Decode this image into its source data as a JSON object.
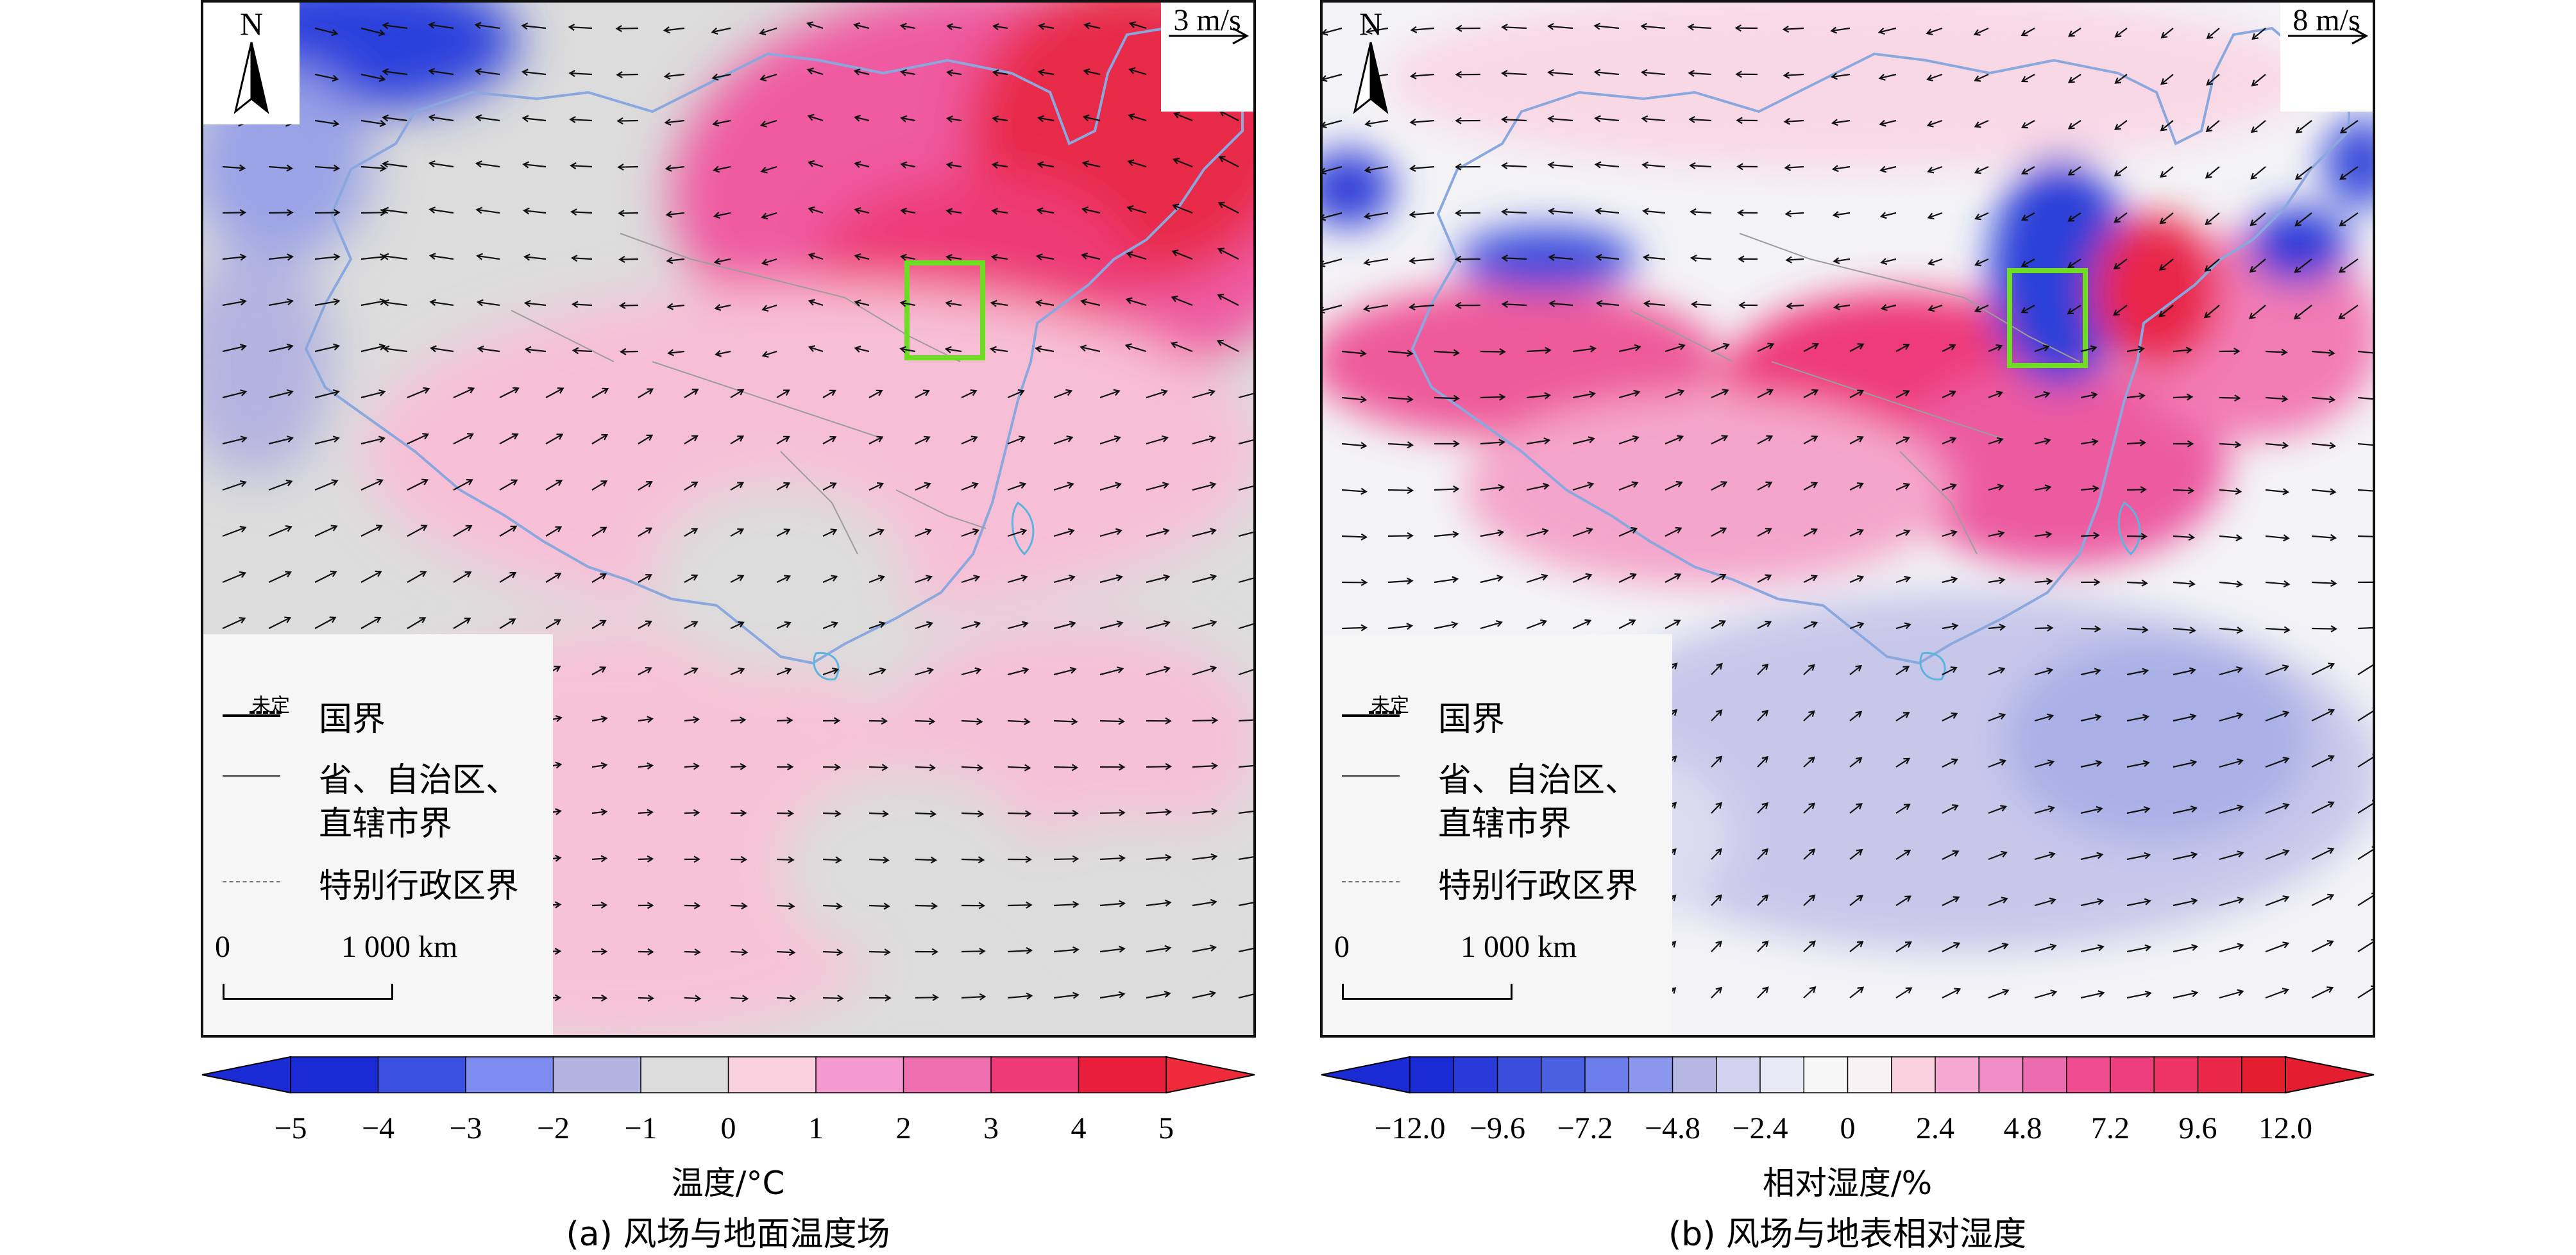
{
  "panels": [
    {
      "caption": "(a) 风场与地面温度场",
      "reference_vector": "3 m/s",
      "north": "N",
      "colorbar": {
        "title": "温度/°C",
        "ticks": [
          "−5",
          "−4",
          "−3",
          "−2",
          "−1",
          "0",
          "1",
          "2",
          "3",
          "4",
          "5"
        ],
        "colors": [
          "#1a2bd6",
          "#3b50e0",
          "#7d8cee",
          "#b3b3e0",
          "#dcdcdc",
          "#f9d0dd",
          "#f59ad0",
          "#ee6fb0",
          "#ef3a78",
          "#e81e3c"
        ],
        "extend_low": "#1a2bd6",
        "extend_high": "#ef2a3a"
      }
    },
    {
      "caption": "(b) 风场与地表相对湿度",
      "reference_vector": "8 m/s",
      "north": "N",
      "colorbar": {
        "title": "相对湿度/%",
        "ticks": [
          "−12.0",
          "−9.6",
          "−7.2",
          "−4.8",
          "−2.4",
          "0",
          "2.4",
          "4.8",
          "7.2",
          "9.6",
          "12.0"
        ],
        "colors": [
          "#1a2bd6",
          "#2a3ad8",
          "#3a4ddb",
          "#4a60e0",
          "#6c7ce8",
          "#8a97ec",
          "#b7b7e3",
          "#d2d2ee",
          "#e9e9f6",
          "#f7f7f7",
          "#f8f0f2",
          "#f9d0dd",
          "#f5a8d2",
          "#f08cc6",
          "#ec6cb0",
          "#ef4d90",
          "#ed3f7d",
          "#ee3466",
          "#ea2748",
          "#e41e2e"
        ],
        "extend_low": "#1a2bd6",
        "extend_high": "#e41e2e"
      }
    }
  ],
  "legend": {
    "undetermined": "未定",
    "national_border": "国界",
    "provincial_border_line1": "省、自治区、",
    "provincial_border_line2": "直辖市界",
    "sar_border": "特别行政区界",
    "scale_zero": "0",
    "scale_km": "1 000 km"
  }
}
